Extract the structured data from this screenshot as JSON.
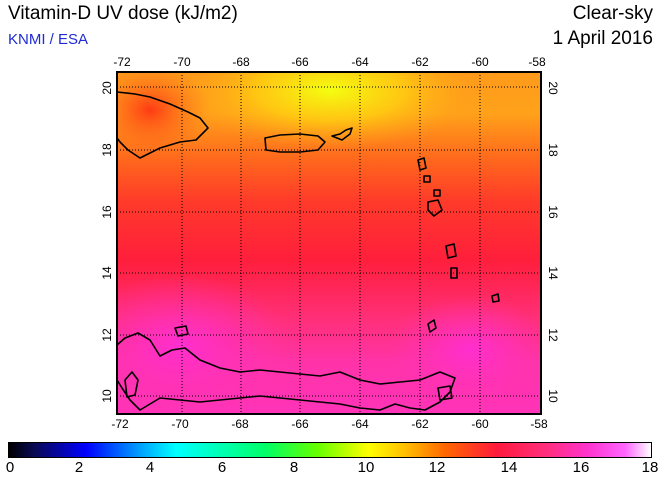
{
  "title": "Vitamin-D UV dose (kJ/m2)",
  "credit": "KNMI / ESA",
  "condition": "Clear-sky",
  "date": "1 April 2016",
  "map": {
    "lon_ticks": [
      "-72",
      "-70",
      "-68",
      "-66",
      "-64",
      "-62",
      "-60",
      "-58"
    ],
    "lat_ticks": [
      "10",
      "12",
      "14",
      "16",
      "18",
      "20"
    ]
  },
  "colorbar": {
    "ticks": [
      "0",
      "2",
      "4",
      "6",
      "8",
      "10",
      "12",
      "14",
      "16",
      "18"
    ],
    "colors": {
      "low": "#000000",
      "blue": "#0000ff",
      "cyan": "#00ffff",
      "green": "#66ff00",
      "yellow": "#ffff00",
      "orange": "#ff6600",
      "red": "#ff1a3c",
      "magenta": "#ff33cc",
      "high": "#ffffff"
    }
  }
}
